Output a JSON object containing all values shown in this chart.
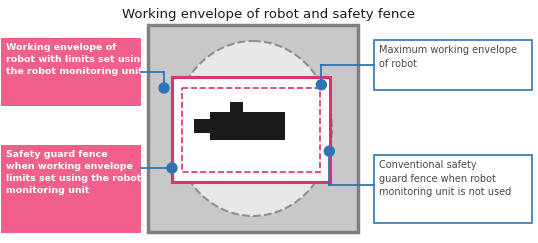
{
  "title": "Working envelope of robot and safety fence",
  "title_fontsize": 9.5,
  "bg_color": "#ffffff",
  "pink_bg": "#f0608a",
  "pink_text": "#ffffff",
  "blue_line_color": "#2e75b6",
  "blue_dot_color": "#2e75b6",
  "gray_rect_fill": "#c8c8c8",
  "gray_rect_edge": "#808080",
  "ellipse_fill": "#d8d8d8",
  "ellipse_edge_color": "#909090",
  "pink_rect_edge": "#e0306e",
  "dashed_rect_edge": "#e0306e",
  "robot_color": "#1a1a1a",
  "right_box_edge": "#2e75b6",
  "right_box_text_color": "#4a4a4a",
  "label_left_top": "Working envelope of\nrobot with limits set using\nthe robot monitoring unit",
  "label_left_bottom": "Safety guard fence\nwhen working envelope\nlimits set using the robot\nmonitoring unit",
  "label_right_top": "Maximum working envelope\nof robot",
  "label_right_bottom": "Conventional safety\nguard fence when robot\nmonitoring unit is not used"
}
